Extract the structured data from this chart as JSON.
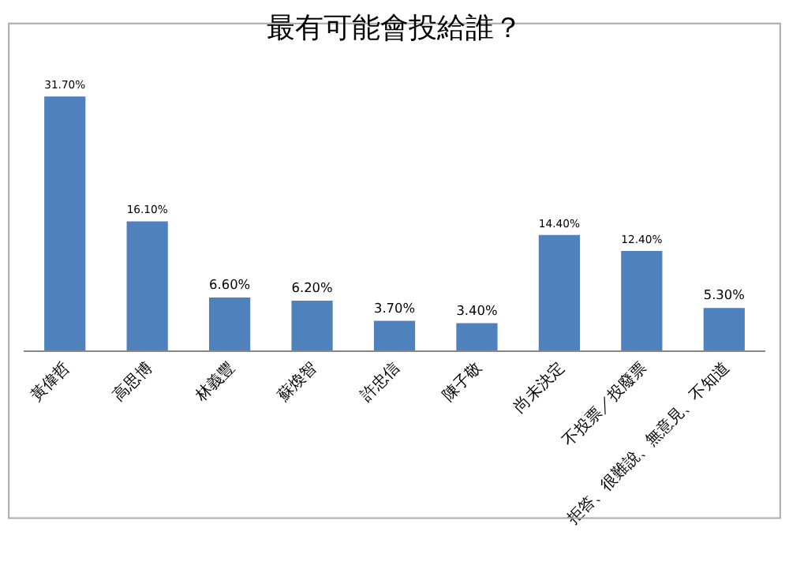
{
  "chart_data": {
    "type": "bar",
    "title": "最有可能會投給誰？",
    "categories": [
      "黃偉哲",
      "高思博",
      "林義豐",
      "蘇煥智",
      "許忠信",
      "陳子敬",
      "尚未決定",
      "不投票／投廢票",
      "拒答、很難說、無意見、不知道"
    ],
    "values": [
      31.7,
      16.1,
      6.6,
      6.2,
      3.7,
      3.4,
      14.4,
      12.4,
      5.3
    ],
    "value_labels": [
      "31.70%",
      "16.10%",
      "6.60%",
      "6.20%",
      "3.70%",
      "3.40%",
      "14.40%",
      "12.40%",
      "5.30%"
    ],
    "color": "#4f81bd",
    "grid": false,
    "legend": false
  }
}
